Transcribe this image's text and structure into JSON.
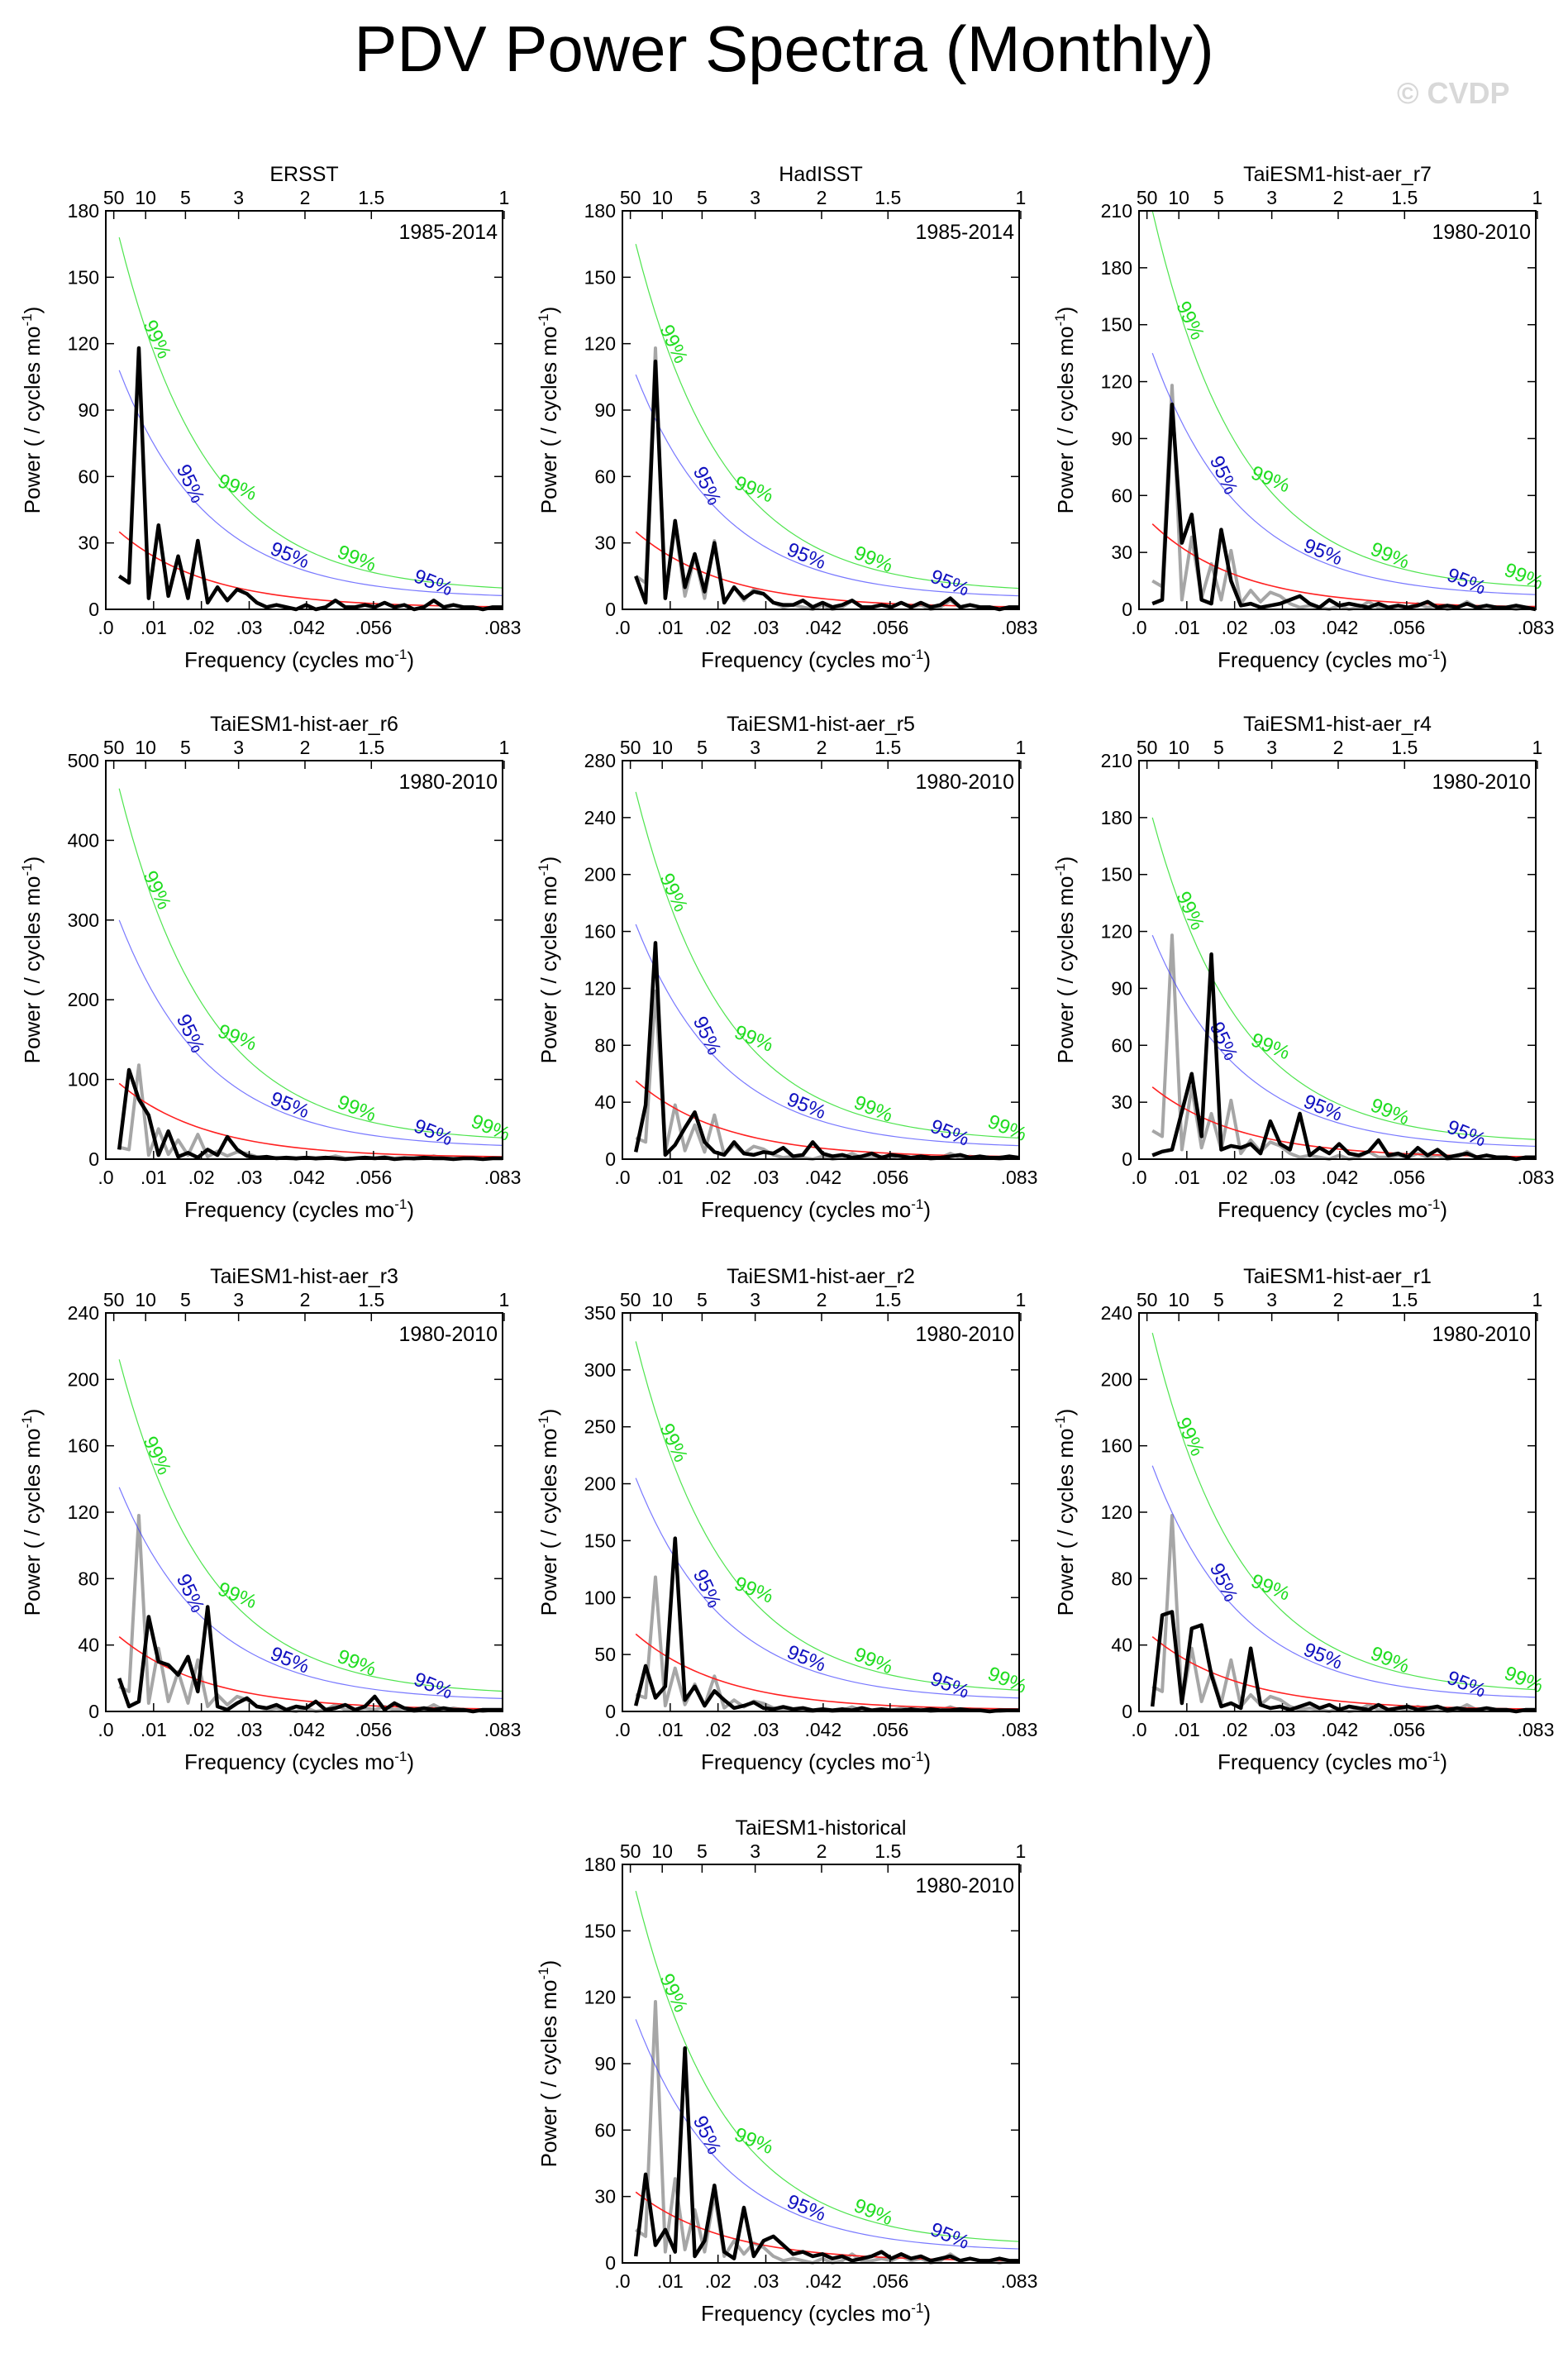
{
  "figure": {
    "title": "PDV Power Spectra (Monthly)",
    "watermark": "© CVDP"
  },
  "colors": {
    "obs": "#000000",
    "obs_ref": "#a6a6a6",
    "red_noise": "#ff2020",
    "ci95": "#3f3fff",
    "ci99": "#22dd22",
    "ci95_label": "#1010c0",
    "ci99_label": "#20dd20"
  },
  "chart_data": [
    {
      "type": "line",
      "title": "ERSST",
      "period": "1985-2014",
      "ylim": [
        0,
        180
      ],
      "yticks": [
        0,
        30,
        60,
        90,
        120,
        150,
        180
      ],
      "xlabel": "Frequency (cycles mo",
      "xlabel_sup": "-1",
      "xlabel_end": ")",
      "ylabel": "Power ( / cycles mo",
      "ylabel_sup": "-1",
      "ylabel_end": ")",
      "xticks": [
        ".0",
        ".01",
        ".02",
        ".03",
        ".042",
        ".056",
        ".083"
      ],
      "period_ticks": [
        "50",
        "10",
        "5",
        "3",
        "2",
        "1.5",
        "1"
      ],
      "red_start": 35,
      "ci95_start": 108,
      "ci99_start": 168,
      "ci_labels": [
        "99%",
        "95%",
        "99%",
        "95%",
        "99%",
        "95%"
      ],
      "spectrum": [
        15,
        12,
        118,
        5,
        38,
        6,
        24,
        5,
        31,
        3,
        10,
        4,
        9,
        7,
        3,
        1,
        2,
        1,
        0,
        2,
        0,
        1,
        4,
        1,
        1,
        2,
        1,
        3,
        1,
        2,
        0,
        1,
        4,
        1,
        2,
        1,
        1,
        0,
        1,
        1
      ],
      "reference": []
    },
    {
      "type": "line",
      "title": "HadISST",
      "period": "1985-2014",
      "ylim": [
        0,
        180
      ],
      "yticks": [
        0,
        30,
        60,
        90,
        120,
        150,
        180
      ],
      "xlabel": "Frequency (cycles mo",
      "xlabel_sup": "-1",
      "xlabel_end": ")",
      "ylabel": "Power ( / cycles mo",
      "ylabel_sup": "-1",
      "ylabel_end": ")",
      "xticks": [
        ".0",
        ".01",
        ".02",
        ".03",
        ".042",
        ".056",
        ".083"
      ],
      "period_ticks": [
        "50",
        "10",
        "5",
        "3",
        "2",
        "1.5",
        "1"
      ],
      "red_start": 35,
      "ci95_start": 106,
      "ci99_start": 165,
      "ci_labels": [
        "99%",
        "95%",
        "99%",
        "95%",
        "99%",
        "95%"
      ],
      "spectrum": [
        15,
        3,
        112,
        5,
        40,
        10,
        25,
        8,
        30,
        3,
        10,
        5,
        8,
        7,
        3,
        2,
        2,
        4,
        1,
        3,
        1,
        2,
        4,
        1,
        1,
        2,
        1,
        3,
        1,
        3,
        1,
        2,
        5,
        1,
        2,
        1,
        1,
        0,
        1,
        1
      ],
      "reference": [
        15,
        12,
        118,
        5,
        38,
        6,
        24,
        5,
        31,
        3,
        10,
        4,
        9,
        7,
        3,
        1,
        2,
        1,
        0,
        2,
        0,
        1,
        4,
        1,
        1,
        2,
        1,
        3,
        1,
        2,
        0,
        1,
        4,
        1,
        2,
        1,
        1,
        0,
        1,
        1
      ]
    },
    {
      "type": "line",
      "title": "TaiESM1-hist-aer_r7",
      "period": "1980-2010",
      "ylim": [
        0,
        210
      ],
      "yticks": [
        0,
        30,
        60,
        90,
        120,
        150,
        180,
        210
      ],
      "xlabel": "Frequency (cycles mo",
      "xlabel_sup": "-1",
      "xlabel_end": ")",
      "ylabel": "Power ( / cycles mo",
      "ylabel_sup": "-1",
      "ylabel_end": ")",
      "xticks": [
        ".0",
        ".01",
        ".02",
        ".03",
        ".042",
        ".056",
        ".083"
      ],
      "period_ticks": [
        "50",
        "10",
        "5",
        "3",
        "2",
        "1.5",
        "1"
      ],
      "red_start": 45,
      "ci95_start": 135,
      "ci99_start": 210,
      "ci_labels": [
        "99%",
        "95%",
        "99%",
        "95%",
        "99%",
        "95%",
        "99%"
      ],
      "spectrum": [
        3,
        5,
        108,
        35,
        50,
        5,
        3,
        42,
        15,
        2,
        3,
        1,
        2,
        3,
        5,
        7,
        3,
        1,
        5,
        2,
        3,
        2,
        1,
        3,
        1,
        2,
        1,
        2,
        4,
        1,
        2,
        1,
        3,
        1,
        2,
        1,
        1,
        2,
        1,
        0
      ],
      "reference": [
        15,
        12,
        118,
        5,
        38,
        6,
        24,
        5,
        31,
        3,
        10,
        4,
        9,
        7,
        3,
        1,
        2,
        1,
        0,
        2,
        0,
        1,
        4,
        1,
        1,
        2,
        1,
        3,
        1,
        2,
        0,
        1,
        4,
        1,
        2,
        1,
        1,
        0,
        1,
        1
      ]
    },
    {
      "type": "line",
      "title": "TaiESM1-hist-aer_r6",
      "period": "1980-2010",
      "ylim": [
        0,
        500
      ],
      "yticks": [
        0,
        100,
        200,
        300,
        400,
        500
      ],
      "xlabel": "Frequency (cycles mo",
      "xlabel_sup": "-1",
      "xlabel_end": ")",
      "ylabel": "Power ( / cycles mo",
      "ylabel_sup": "-1",
      "ylabel_end": ")",
      "xticks": [
        ".0",
        ".01",
        ".02",
        ".03",
        ".042",
        ".056",
        ".083"
      ],
      "period_ticks": [
        "50",
        "10",
        "5",
        "3",
        "2",
        "1.5",
        "1"
      ],
      "red_start": 95,
      "ci95_start": 300,
      "ci99_start": 465,
      "ci_labels": [
        "99%",
        "95%",
        "99%",
        "95%",
        "99%",
        "95%",
        "99%"
      ],
      "spectrum": [
        12,
        112,
        75,
        55,
        5,
        35,
        3,
        8,
        2,
        12,
        5,
        28,
        12,
        4,
        2,
        3,
        1,
        2,
        1,
        2,
        1,
        2,
        1,
        0,
        1,
        2,
        1,
        2,
        0,
        1,
        1,
        2,
        1,
        1,
        0,
        1,
        1,
        0,
        1,
        1
      ],
      "reference": [
        15,
        12,
        118,
        5,
        38,
        6,
        24,
        5,
        31,
        3,
        10,
        4,
        9,
        7,
        3,
        1,
        2,
        1,
        0,
        2,
        0,
        1,
        4,
        1,
        1,
        2,
        1,
        3,
        1,
        2,
        0,
        1,
        4,
        1,
        2,
        1,
        1,
        0,
        1,
        1
      ]
    },
    {
      "type": "line",
      "title": "TaiESM1-hist-aer_r5",
      "period": "1980-2010",
      "ylim": [
        0,
        280
      ],
      "yticks": [
        0,
        40,
        80,
        120,
        160,
        200,
        240,
        280
      ],
      "xlabel": "Frequency (cycles mo",
      "xlabel_sup": "-1",
      "xlabel_end": ")",
      "ylabel": "Power ( / cycles mo",
      "ylabel_sup": "-1",
      "ylabel_end": ")",
      "xticks": [
        ".0",
        ".01",
        ".02",
        ".03",
        ".042",
        ".056",
        ".083"
      ],
      "period_ticks": [
        "50",
        "10",
        "5",
        "3",
        "2",
        "1.5",
        "1"
      ],
      "red_start": 55,
      "ci95_start": 165,
      "ci99_start": 258,
      "ci_labels": [
        "99%",
        "95%",
        "99%",
        "95%",
        "99%",
        "95%",
        "99%"
      ],
      "spectrum": [
        5,
        38,
        152,
        3,
        10,
        22,
        33,
        12,
        5,
        3,
        12,
        4,
        3,
        5,
        4,
        8,
        2,
        3,
        12,
        4,
        2,
        3,
        1,
        2,
        4,
        1,
        3,
        2,
        1,
        2,
        1,
        1,
        2,
        3,
        1,
        2,
        1,
        1,
        2,
        1
      ],
      "reference": [
        15,
        12,
        118,
        5,
        38,
        6,
        24,
        5,
        31,
        3,
        10,
        4,
        9,
        7,
        3,
        1,
        2,
        1,
        0,
        2,
        0,
        1,
        4,
        1,
        1,
        2,
        1,
        3,
        1,
        2,
        0,
        1,
        4,
        1,
        2,
        1,
        1,
        0,
        1,
        1
      ]
    },
    {
      "type": "line",
      "title": "TaiESM1-hist-aer_r4",
      "period": "1980-2010",
      "ylim": [
        0,
        210
      ],
      "yticks": [
        0,
        30,
        60,
        90,
        120,
        150,
        180,
        210
      ],
      "xlabel": "Frequency (cycles mo",
      "xlabel_sup": "-1",
      "xlabel_end": ")",
      "ylabel": "Power ( / cycles mo",
      "ylabel_sup": "-1",
      "ylabel_end": ")",
      "xticks": [
        ".0",
        ".01",
        ".02",
        ".03",
        ".042",
        ".056",
        ".083"
      ],
      "period_ticks": [
        "50",
        "10",
        "5",
        "3",
        "2",
        "1.5",
        "1"
      ],
      "red_start": 38,
      "ci95_start": 118,
      "ci99_start": 180,
      "ci_labels": [
        "99%",
        "95%",
        "99%",
        "95%",
        "99%",
        "95%"
      ],
      "spectrum": [
        2,
        4,
        5,
        25,
        45,
        12,
        108,
        5,
        7,
        6,
        8,
        3,
        20,
        8,
        5,
        24,
        2,
        6,
        3,
        8,
        3,
        2,
        4,
        10,
        2,
        3,
        1,
        6,
        2,
        5,
        1,
        2,
        3,
        1,
        2,
        1,
        1,
        0,
        1,
        1
      ],
      "reference": [
        15,
        12,
        118,
        5,
        38,
        6,
        24,
        5,
        31,
        3,
        10,
        4,
        9,
        7,
        3,
        1,
        2,
        1,
        0,
        2,
        0,
        1,
        4,
        1,
        1,
        2,
        1,
        3,
        1,
        2,
        0,
        1,
        4,
        1,
        2,
        1,
        1,
        0,
        1,
        1
      ]
    },
    {
      "type": "line",
      "title": "TaiESM1-hist-aer_r3",
      "period": "1980-2010",
      "ylim": [
        0,
        240
      ],
      "yticks": [
        0,
        40,
        80,
        120,
        160,
        200,
        240
      ],
      "xlabel": "Frequency (cycles mo",
      "xlabel_sup": "-1",
      "xlabel_end": ")",
      "ylabel": "Power ( / cycles mo",
      "ylabel_sup": "-1",
      "ylabel_end": ")",
      "xticks": [
        ".0",
        ".01",
        ".02",
        ".03",
        ".042",
        ".056",
        ".083"
      ],
      "period_ticks": [
        "50",
        "10",
        "5",
        "3",
        "2",
        "1.5",
        "1"
      ],
      "red_start": 45,
      "ci95_start": 135,
      "ci99_start": 212,
      "ci_labels": [
        "99%",
        "95%",
        "99%",
        "95%",
        "99%",
        "95%"
      ],
      "spectrum": [
        20,
        3,
        6,
        57,
        30,
        28,
        22,
        33,
        12,
        63,
        3,
        1,
        5,
        8,
        3,
        2,
        4,
        1,
        3,
        2,
        6,
        1,
        2,
        4,
        1,
        3,
        9,
        1,
        5,
        2,
        1,
        2,
        1,
        2,
        1,
        1,
        0,
        1,
        1,
        1
      ],
      "reference": [
        15,
        12,
        118,
        5,
        38,
        6,
        24,
        5,
        31,
        3,
        10,
        4,
        9,
        7,
        3,
        1,
        2,
        1,
        0,
        2,
        0,
        1,
        4,
        1,
        1,
        2,
        1,
        3,
        1,
        2,
        0,
        1,
        4,
        1,
        2,
        1,
        1,
        0,
        1,
        1
      ]
    },
    {
      "type": "line",
      "title": "TaiESM1-hist-aer_r2",
      "period": "1980-2010",
      "ylim": [
        0,
        350
      ],
      "yticks": [
        0,
        50,
        100,
        150,
        200,
        250,
        300,
        350
      ],
      "xlabel": "Frequency (cycles mo",
      "xlabel_sup": "-1",
      "xlabel_end": ")",
      "ylabel": "Power ( / cycles mo",
      "ylabel_sup": "-1",
      "ylabel_end": ")",
      "xticks": [
        ".0",
        ".01",
        ".02",
        ".03",
        ".042",
        ".056",
        ".083"
      ],
      "period_ticks": [
        "50",
        "10",
        "5",
        "3",
        "2",
        "1.5",
        "1"
      ],
      "red_start": 68,
      "ci95_start": 205,
      "ci99_start": 325,
      "ci_labels": [
        "99%",
        "95%",
        "99%",
        "95%",
        "99%",
        "95%",
        "99%"
      ],
      "spectrum": [
        5,
        40,
        12,
        22,
        152,
        10,
        22,
        5,
        18,
        10,
        3,
        5,
        8,
        3,
        2,
        4,
        2,
        3,
        1,
        2,
        1,
        2,
        1,
        3,
        1,
        2,
        1,
        1,
        2,
        1,
        2,
        1,
        1,
        2,
        1,
        1,
        0,
        1,
        1,
        1
      ],
      "reference": [
        15,
        12,
        118,
        5,
        38,
        6,
        24,
        5,
        31,
        3,
        10,
        4,
        9,
        7,
        3,
        1,
        2,
        1,
        0,
        2,
        0,
        1,
        4,
        1,
        1,
        2,
        1,
        3,
        1,
        2,
        0,
        1,
        4,
        1,
        2,
        1,
        1,
        0,
        1,
        1
      ]
    },
    {
      "type": "line",
      "title": "TaiESM1-hist-aer_r1",
      "period": "1980-2010",
      "ylim": [
        0,
        240
      ],
      "yticks": [
        0,
        40,
        80,
        120,
        160,
        200,
        240
      ],
      "xlabel": "Frequency (cycles mo",
      "xlabel_sup": "-1",
      "xlabel_end": ")",
      "ylabel": "Power ( / cycles mo",
      "ylabel_sup": "-1",
      "ylabel_end": ")",
      "xticks": [
        ".0",
        ".01",
        ".02",
        ".03",
        ".042",
        ".056",
        ".083"
      ],
      "period_ticks": [
        "50",
        "10",
        "5",
        "3",
        "2",
        "1.5",
        "1"
      ],
      "red_start": 45,
      "ci95_start": 148,
      "ci99_start": 228,
      "ci_labels": [
        "99%",
        "95%",
        "99%",
        "95%",
        "99%",
        "95%",
        "99%"
      ],
      "spectrum": [
        3,
        58,
        60,
        5,
        50,
        52,
        22,
        3,
        5,
        2,
        38,
        4,
        2,
        3,
        1,
        3,
        5,
        2,
        4,
        1,
        3,
        2,
        1,
        4,
        1,
        2,
        3,
        1,
        2,
        3,
        1,
        2,
        1,
        1,
        2,
        1,
        1,
        0,
        1,
        1
      ],
      "reference": [
        15,
        12,
        118,
        5,
        38,
        6,
        24,
        5,
        31,
        3,
        10,
        4,
        9,
        7,
        3,
        1,
        2,
        1,
        0,
        2,
        0,
        1,
        4,
        1,
        1,
        2,
        1,
        3,
        1,
        2,
        0,
        1,
        4,
        1,
        2,
        1,
        1,
        0,
        1,
        1
      ]
    },
    {
      "type": "line",
      "title": "TaiESM1-historical",
      "period": "1980-2010",
      "ylim": [
        0,
        180
      ],
      "yticks": [
        0,
        30,
        60,
        90,
        120,
        150,
        180
      ],
      "xlabel": "Frequency (cycles mo",
      "xlabel_sup": "-1",
      "xlabel_end": ")",
      "ylabel": "Power ( / cycles mo",
      "ylabel_sup": "-1",
      "ylabel_end": ")",
      "xticks": [
        ".0",
        ".01",
        ".02",
        ".03",
        ".042",
        ".056",
        ".083"
      ],
      "period_ticks": [
        "50",
        "10",
        "5",
        "3",
        "2",
        "1.5",
        "1"
      ],
      "red_start": 32,
      "ci95_start": 110,
      "ci99_start": 168,
      "ci_labels": [
        "99%",
        "95%",
        "99%",
        "95%",
        "99%",
        "95%"
      ],
      "spectrum": [
        3,
        40,
        8,
        15,
        5,
        97,
        3,
        10,
        35,
        5,
        2,
        25,
        3,
        10,
        12,
        8,
        4,
        5,
        3,
        4,
        2,
        3,
        1,
        2,
        3,
        5,
        2,
        4,
        2,
        3,
        1,
        2,
        3,
        1,
        2,
        1,
        1,
        2,
        1,
        1
      ],
      "reference": [
        15,
        12,
        118,
        5,
        38,
        6,
        24,
        5,
        31,
        3,
        10,
        4,
        9,
        7,
        3,
        1,
        2,
        1,
        0,
        2,
        0,
        1,
        4,
        1,
        1,
        2,
        1,
        3,
        1,
        2,
        0,
        1,
        4,
        1,
        2,
        1,
        1,
        0,
        1,
        1
      ]
    }
  ]
}
